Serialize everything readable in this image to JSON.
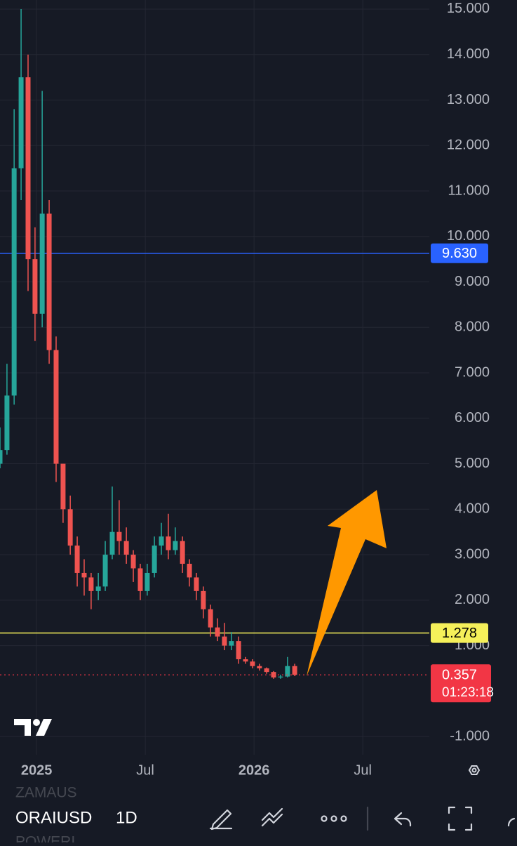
{
  "chart_data": {
    "type": "candlestick",
    "x": [
      2024.832,
      2024.864,
      2024.897,
      2024.929,
      2024.961,
      2024.993,
      2025.026,
      2025.058,
      2025.09,
      2025.122,
      2025.155,
      2025.187,
      2025.219,
      2025.251,
      2025.284,
      2025.316,
      2025.348,
      2025.38,
      2025.413,
      2025.445,
      2025.477,
      2025.509,
      2025.542,
      2025.574,
      2025.606,
      2025.638,
      2025.671,
      2025.703,
      2025.735,
      2025.767,
      2025.8,
      2025.832,
      2025.864,
      2025.896,
      2025.929,
      2025.961,
      2025.993,
      2026.025,
      2026.058,
      2026.09,
      2026.122,
      2026.154,
      2026.187
    ],
    "open": [
      5.0,
      5.3,
      6.5,
      11.5,
      13.5,
      9.5,
      8.3,
      10.5,
      7.5,
      5.0,
      4.0,
      3.2,
      2.6,
      2.5,
      2.2,
      2.3,
      3.0,
      3.5,
      3.3,
      3.0,
      2.7,
      2.2,
      2.6,
      3.2,
      3.4,
      3.1,
      3.3,
      2.8,
      2.5,
      2.2,
      1.8,
      1.4,
      1.2,
      1.0,
      1.1,
      0.7,
      0.65,
      0.55,
      0.5,
      0.42,
      0.3,
      0.32,
      0.55
    ],
    "high": [
      5.8,
      7.2,
      12.8,
      15.0,
      14.0,
      10.2,
      13.2,
      10.8,
      7.8,
      5.0,
      4.3,
      3.4,
      2.9,
      2.6,
      2.6,
      3.3,
      4.5,
      4.2,
      3.6,
      3.1,
      2.8,
      2.8,
      3.4,
      3.7,
      3.9,
      3.6,
      3.4,
      2.9,
      2.6,
      2.3,
      1.9,
      1.6,
      1.5,
      1.3,
      1.2,
      0.75,
      0.7,
      0.6,
      0.52,
      0.44,
      0.36,
      0.75,
      0.6
    ],
    "low": [
      4.9,
      5.2,
      6.3,
      10.8,
      8.8,
      7.7,
      8.0,
      7.2,
      4.6,
      3.7,
      3.0,
      2.3,
      2.1,
      1.8,
      2.0,
      2.2,
      2.9,
      3.0,
      2.8,
      2.4,
      2.0,
      2.1,
      2.5,
      3.0,
      2.9,
      3.0,
      2.6,
      2.3,
      2.0,
      1.6,
      1.2,
      1.1,
      0.9,
      0.9,
      0.6,
      0.6,
      0.5,
      0.45,
      0.38,
      0.27,
      0.27,
      0.3,
      0.33
    ],
    "close": [
      5.3,
      6.5,
      11.5,
      13.5,
      9.5,
      8.3,
      10.5,
      7.5,
      5.0,
      4.0,
      3.2,
      2.6,
      2.5,
      2.2,
      2.3,
      3.0,
      3.5,
      3.3,
      3.0,
      2.7,
      2.2,
      2.6,
      3.2,
      3.4,
      3.1,
      3.3,
      2.8,
      2.5,
      2.2,
      1.8,
      1.4,
      1.2,
      1.0,
      1.1,
      0.7,
      0.65,
      0.55,
      0.5,
      0.42,
      0.3,
      0.32,
      0.55,
      0.357
    ],
    "up_color": "#26a69a",
    "down_color": "#ef5350",
    "xlim": [
      2024.832,
      2026.806
    ],
    "xticks": [
      {
        "value": 2025,
        "label": "2025"
      },
      {
        "value": 2025.5,
        "label": "Jul"
      },
      {
        "value": 2026,
        "label": "2026"
      },
      {
        "value": 2026.5,
        "label": "Jul"
      }
    ],
    "ylim": [
      -1.4,
      15.2
    ],
    "yticks": [
      {
        "value": 15,
        "label": "15.000"
      },
      {
        "value": 14,
        "label": "14.000"
      },
      {
        "value": 13,
        "label": "13.000"
      },
      {
        "value": 12,
        "label": "12.000"
      },
      {
        "value": 11,
        "label": "11.000"
      },
      {
        "value": 10,
        "label": "10.000"
      },
      {
        "value": 9,
        "label": "9.000"
      },
      {
        "value": 8,
        "label": "8.000"
      },
      {
        "value": 7,
        "label": "7.000"
      },
      {
        "value": 6,
        "label": "6.000"
      },
      {
        "value": 5,
        "label": "5.000"
      },
      {
        "value": 4,
        "label": "4.000"
      },
      {
        "value": 3,
        "label": "3.000"
      },
      {
        "value": 2,
        "label": "2.000"
      },
      {
        "value": 1,
        "label": "1.000"
      },
      {
        "value": -1,
        "label": "-1.000"
      }
    ],
    "grid": true,
    "levels": [
      {
        "value": 9.63,
        "label": "9.630",
        "color": "#2962ff"
      },
      {
        "value": 1.278,
        "label": "1.278",
        "color": "#f5f05a"
      }
    ],
    "last_price": {
      "value": 0.357,
      "label": "0.357",
      "countdown": "01:23:18",
      "color": "#f23645"
    }
  },
  "toolbar": {
    "symbols": [
      "ZAMAUS",
      "ORAIUSD",
      "POWERI"
    ],
    "interval": "1D"
  }
}
